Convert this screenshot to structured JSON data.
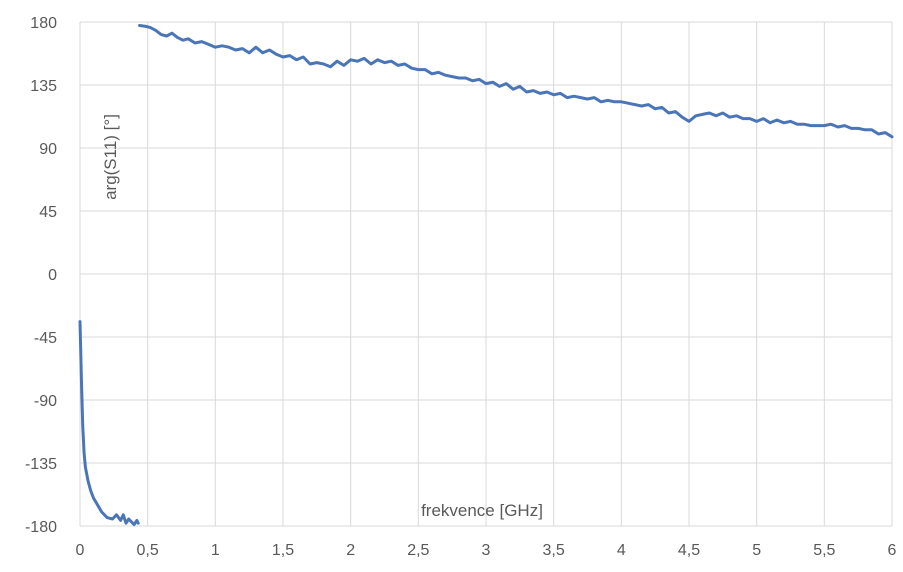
{
  "chart_data": {
    "type": "line",
    "title": "",
    "xlabel": "frekvence [GHz]",
    "ylabel": "arg(S11) [°]",
    "xlim": [
      0,
      6
    ],
    "ylim": [
      -180,
      180
    ],
    "x_ticks": [
      "0",
      "0,5",
      "1",
      "1,5",
      "2",
      "2,5",
      "3",
      "3,5",
      "4",
      "4,5",
      "5",
      "5,5",
      "6"
    ],
    "y_ticks": [
      "180",
      "135",
      "90",
      "45",
      "0",
      "-45",
      "-90",
      "-135",
      "-180"
    ],
    "grid": true,
    "legend": "none",
    "series": [
      {
        "color": "#4a76b8",
        "segments": [
          {
            "x": [
              0.0,
              0.01,
              0.02,
              0.03,
              0.04,
              0.06,
              0.08,
              0.1,
              0.13,
              0.16,
              0.2,
              0.24,
              0.27,
              0.3,
              0.32,
              0.34,
              0.36,
              0.38,
              0.4,
              0.42,
              0.43
            ],
            "y": [
              -34,
              -75,
              -108,
              -128,
              -138,
              -148,
              -155,
              -160,
              -165,
              -170,
              -174,
              -175,
              -172,
              -176,
              -172,
              -178,
              -175,
              -177,
              -179,
              -176,
              -178
            ]
          },
          {
            "x": [
              0.44,
              0.48,
              0.52,
              0.56,
              0.6,
              0.64,
              0.68,
              0.72,
              0.76,
              0.8,
              0.85,
              0.9,
              0.95,
              1.0,
              1.05,
              1.1,
              1.15,
              1.2,
              1.25,
              1.3,
              1.35,
              1.4,
              1.45,
              1.5,
              1.55,
              1.6,
              1.65,
              1.7,
              1.75,
              1.8,
              1.85,
              1.9,
              1.95,
              2.0,
              2.05,
              2.1,
              2.15,
              2.2,
              2.25,
              2.3,
              2.35,
              2.4,
              2.45,
              2.5,
              2.55,
              2.6,
              2.65,
              2.7,
              2.75,
              2.8,
              2.85,
              2.9,
              2.95,
              3.0,
              3.05,
              3.1,
              3.15,
              3.2,
              3.25,
              3.3,
              3.35,
              3.4,
              3.45,
              3.5,
              3.55,
              3.6,
              3.65,
              3.7,
              3.75,
              3.8,
              3.85,
              3.9,
              3.95,
              4.0,
              4.05,
              4.1,
              4.15,
              4.2,
              4.25,
              4.3,
              4.35,
              4.4,
              4.45,
              4.5,
              4.55,
              4.6,
              4.65,
              4.7,
              4.75,
              4.8,
              4.85,
              4.9,
              4.95,
              5.0,
              5.05,
              5.1,
              5.15,
              5.2,
              5.25,
              5.3,
              5.35,
              5.4,
              5.45,
              5.5,
              5.55,
              5.6,
              5.65,
              5.7,
              5.75,
              5.8,
              5.85,
              5.9,
              5.95,
              6.0
            ],
            "y": [
              177.5,
              177,
              176,
              174,
              171,
              170,
              172,
              169,
              167,
              168,
              165,
              166,
              164,
              162,
              163,
              162,
              160,
              161,
              158,
              162,
              158,
              160,
              157,
              155,
              156,
              153,
              155,
              150,
              151,
              150,
              148,
              152,
              149,
              153,
              152,
              154,
              150,
              153,
              151,
              152,
              149,
              150,
              147,
              146,
              146,
              143,
              144,
              142,
              141,
              140,
              140,
              138,
              139,
              136,
              137,
              134,
              136,
              132,
              134,
              130,
              131,
              129,
              130,
              128,
              129,
              126,
              127,
              126,
              125,
              126,
              123,
              124,
              123,
              123,
              122,
              121,
              120,
              121,
              118,
              119,
              115,
              116,
              112,
              109,
              113,
              114,
              115,
              113,
              115,
              112,
              113,
              111,
              111,
              109,
              111,
              108,
              110,
              108,
              109,
              107,
              107,
              106,
              106,
              106,
              107,
              105,
              106,
              104,
              104,
              103,
              103,
              100,
              101,
              98
            ]
          }
        ]
      }
    ]
  }
}
